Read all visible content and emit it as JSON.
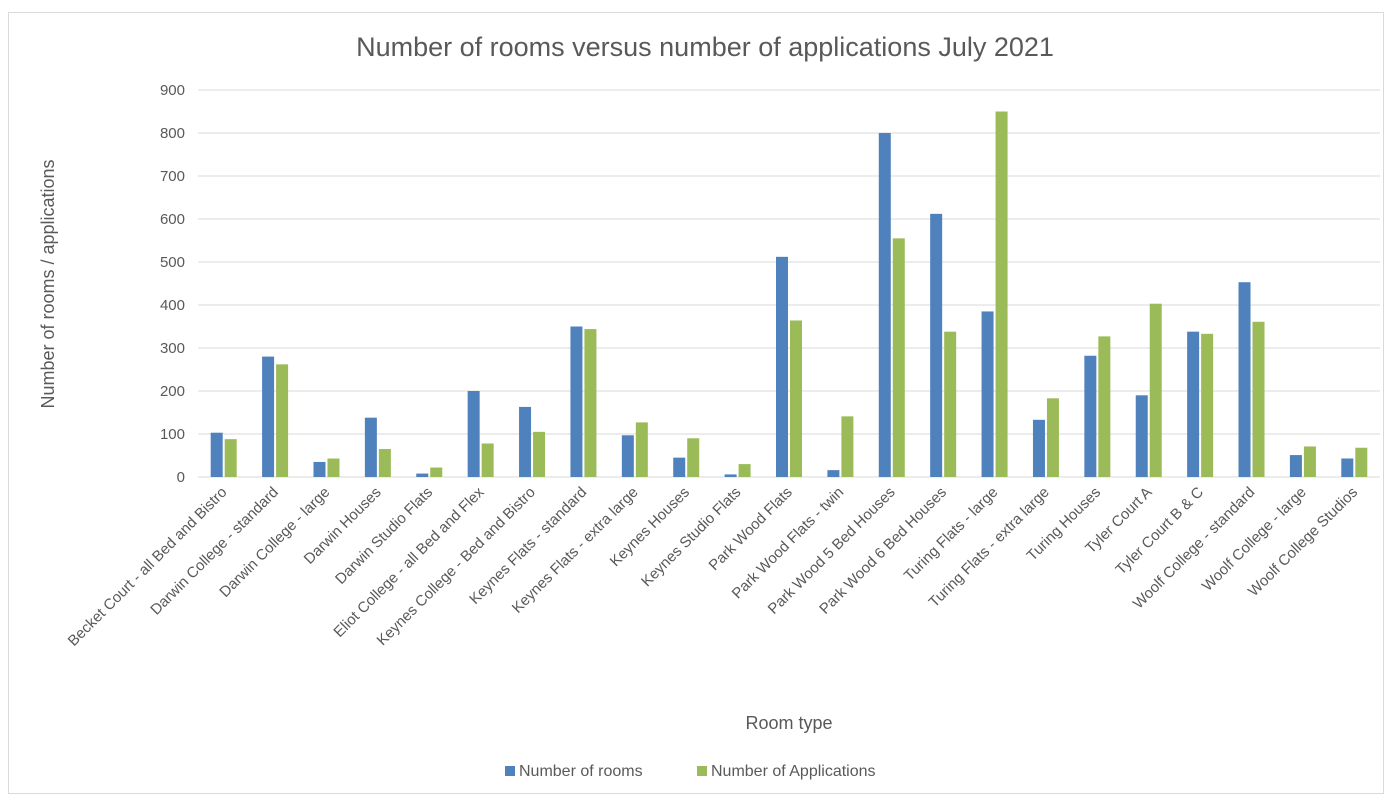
{
  "chart_data": {
    "type": "bar",
    "title": "Number of rooms versus number of applications July 2021",
    "xlabel": "Room type",
    "ylabel": "Number of rooms / applications",
    "ylim": [
      0,
      900
    ],
    "yticks": [
      0,
      100,
      200,
      300,
      400,
      500,
      600,
      700,
      800,
      900
    ],
    "grid": true,
    "legend_position": "bottom",
    "categories": [
      "Becket Court - all Bed and Bistro",
      "Darwin College - standard",
      "Darwin College - large",
      "Darwin Houses",
      "Darwin Studio Flats",
      "Eliot College - all Bed and Flex",
      "Keynes College - Bed and Bistro",
      "Keynes Flats - standard",
      "Keynes Flats - extra large",
      "Keynes Houses",
      "Keynes Studio Flats",
      "Park Wood Flats",
      "Park Wood Flats - twin",
      "Park Wood 5 Bed Houses",
      "Park Wood 6 Bed Houses",
      "Turing Flats - large",
      "Turing Flats - extra large",
      "Turing Houses",
      "Tyler Court A",
      "Tyler Court B & C",
      "Woolf College - standard",
      "Woolf College - large",
      "Woolf College Studios"
    ],
    "series": [
      {
        "name": "Number of rooms",
        "color": "#4f81bd",
        "values": [
          103,
          280,
          35,
          138,
          8,
          200,
          163,
          350,
          97,
          45,
          6,
          512,
          16,
          800,
          612,
          385,
          133,
          282,
          190,
          338,
          453,
          51,
          43
        ]
      },
      {
        "name": "Number of Applications",
        "color": "#9bbb59",
        "values": [
          88,
          262,
          43,
          65,
          22,
          78,
          105,
          344,
          127,
          90,
          30,
          364,
          141,
          555,
          338,
          850,
          183,
          327,
          403,
          333,
          361,
          71,
          68
        ]
      }
    ]
  }
}
